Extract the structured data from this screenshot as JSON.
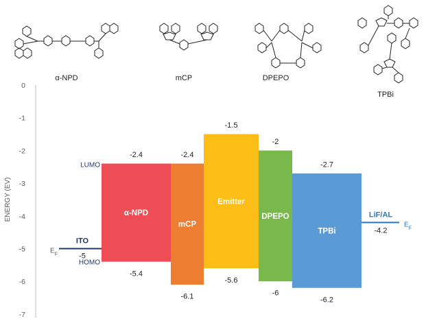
{
  "diagram": {
    "ylabel": "ENERGY (EV)",
    "ylim": [
      -7,
      0
    ],
    "yticks": [
      0,
      -1,
      -2,
      -3,
      -4,
      -5,
      -6,
      -7
    ],
    "molecules": [
      {
        "name": "α-NPD",
        "icon": "alpha-npd-structure"
      },
      {
        "name": "mCP",
        "icon": "mcp-structure"
      },
      {
        "name": "DPEPO",
        "icon": "dpepo-structure"
      },
      {
        "name": "TPBi",
        "icon": "tpbi-structure"
      }
    ],
    "layers": [
      {
        "name": "α-NPD",
        "lumo": -2.4,
        "homo": -5.4,
        "lumo_label": "-2.4",
        "homo_label": "-5.4",
        "color": "#ee4d55"
      },
      {
        "name": "mCP",
        "lumo": -2.4,
        "homo": -6.1,
        "lumo_label": "-2.4",
        "homo_label": "-6.1",
        "color": "#ed7d31"
      },
      {
        "name": "Emitter",
        "lumo": -1.5,
        "homo": -5.6,
        "lumo_label": "-1.5",
        "homo_label": "-5.6",
        "color": "#fbbd16"
      },
      {
        "name": "DPEPO",
        "lumo": -2.0,
        "homo": -6.0,
        "lumo_label": "-2",
        "homo_label": "-6",
        "color": "#79b94c"
      },
      {
        "name": "TPBi",
        "lumo": -2.7,
        "homo": -6.2,
        "lumo_label": "-2.7",
        "homo_label": "-6.2",
        "color": "#5b9bd5"
      }
    ],
    "electrodes": [
      {
        "name": "ITO",
        "level": -5.0,
        "value_label": "-5",
        "fermi_label": "E",
        "fermi_sub": "F",
        "color": "#1f3864"
      },
      {
        "name": "LiF/AL",
        "level": -4.2,
        "value_label": "-4.2",
        "fermi_label": "E",
        "fermi_sub": "F",
        "color": "#2e75b6"
      }
    ],
    "side_labels": {
      "lumo": "LUMO",
      "homo": "HOMO"
    }
  }
}
